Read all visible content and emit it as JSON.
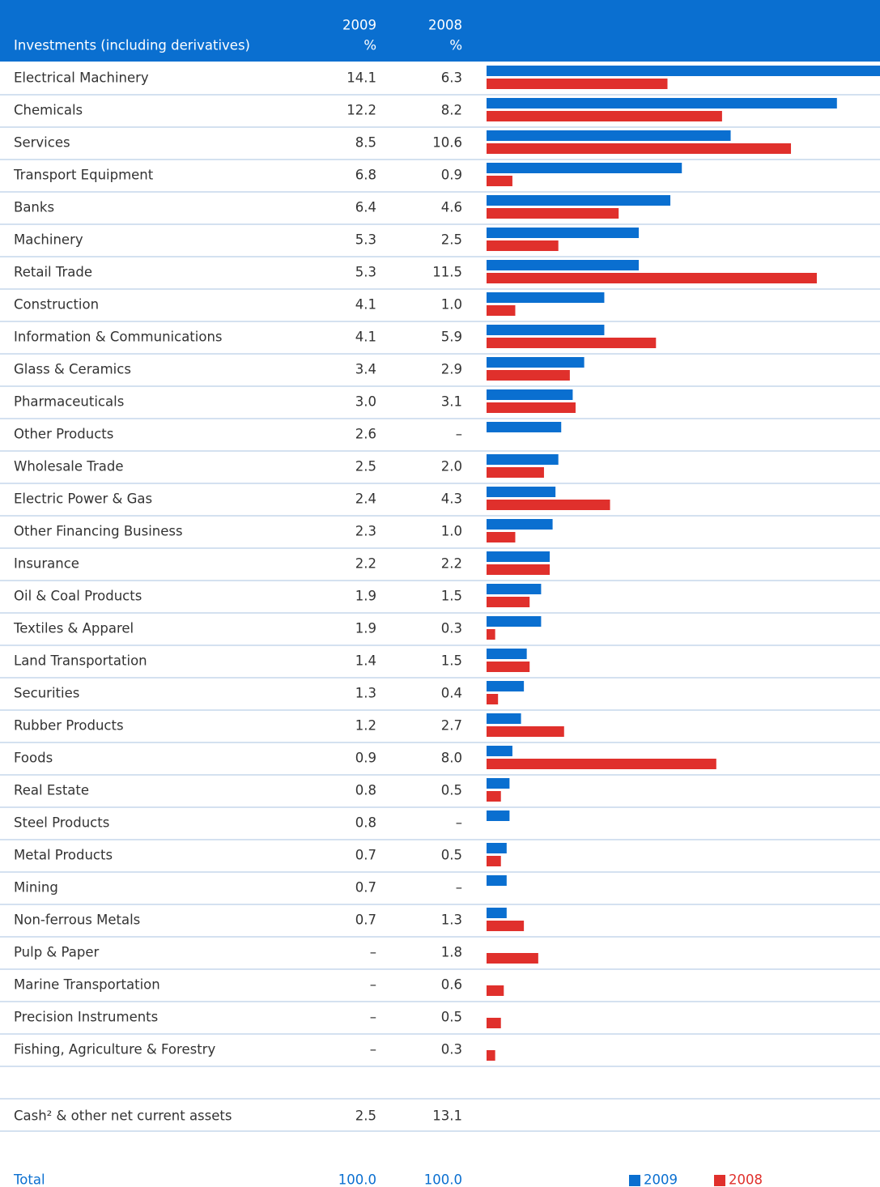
{
  "table": {
    "title": "Investments (including derivatives)",
    "columns": [
      {
        "year": "2009",
        "unit": "%"
      },
      {
        "year": "2008",
        "unit": "%"
      }
    ],
    "rows": [
      {
        "label": "Electrical Machinery",
        "cells": [
          "14.1",
          "6.3"
        ]
      },
      {
        "label": "Chemicals",
        "cells": [
          "12.2",
          "8.2"
        ]
      },
      {
        "label": "Services",
        "cells": [
          "8.5",
          "10.6"
        ]
      },
      {
        "label": "Transport Equipment",
        "cells": [
          "6.8",
          "0.9"
        ]
      },
      {
        "label": "Banks",
        "cells": [
          "6.4",
          "4.6"
        ]
      },
      {
        "label": "Machinery",
        "cells": [
          "5.3",
          "2.5"
        ]
      },
      {
        "label": "Retail Trade",
        "cells": [
          "5.3",
          "11.5"
        ]
      },
      {
        "label": "Construction",
        "cells": [
          "4.1",
          "1.0"
        ]
      },
      {
        "label": "Information & Communications",
        "cells": [
          "4.1",
          "5.9"
        ]
      },
      {
        "label": "Glass & Ceramics",
        "cells": [
          "3.4",
          "2.9"
        ]
      },
      {
        "label": "Pharmaceuticals",
        "cells": [
          "3.0",
          "3.1"
        ]
      },
      {
        "label": "Other Products",
        "cells": [
          "2.6",
          "–"
        ]
      },
      {
        "label": "Wholesale Trade",
        "cells": [
          "2.5",
          "2.0"
        ]
      },
      {
        "label": "Electric Power & Gas",
        "cells": [
          "2.4",
          "4.3"
        ]
      },
      {
        "label": "Other Financing Business",
        "cells": [
          "2.3",
          "1.0"
        ]
      },
      {
        "label": "Insurance",
        "cells": [
          "2.2",
          "2.2"
        ]
      },
      {
        "label": "Oil & Coal Products",
        "cells": [
          "1.9",
          "1.5"
        ]
      },
      {
        "label": "Textiles & Apparel",
        "cells": [
          "1.9",
          "0.3"
        ]
      },
      {
        "label": "Land Transportation",
        "cells": [
          "1.4",
          "1.5"
        ]
      },
      {
        "label": "Securities",
        "cells": [
          "1.3",
          "0.4"
        ]
      },
      {
        "label": "Rubber Products",
        "cells": [
          "1.2",
          "2.7"
        ]
      },
      {
        "label": "Foods",
        "cells": [
          "0.9",
          "8.0"
        ]
      },
      {
        "label": "Real Estate",
        "cells": [
          "0.8",
          "0.5"
        ]
      },
      {
        "label": "Steel Products",
        "cells": [
          "0.8",
          "–"
        ]
      },
      {
        "label": "Metal Products",
        "cells": [
          "0.7",
          "0.5"
        ]
      },
      {
        "label": "Mining",
        "cells": [
          "0.7",
          "–"
        ]
      },
      {
        "label": "Non-ferrous Metals",
        "cells": [
          "0.7",
          "1.3"
        ]
      },
      {
        "label": "Pulp & Paper",
        "cells": [
          "–",
          "1.8"
        ]
      },
      {
        "label": "Marine Transportation",
        "cells": [
          "–",
          "0.6"
        ]
      },
      {
        "label": "Precision Instruments",
        "cells": [
          "–",
          "0.5"
        ]
      },
      {
        "label": "Fishing, Agriculture & Forestry",
        "cells": [
          "–",
          "0.3"
        ]
      }
    ],
    "cash": {
      "label": "Cash² & other net current assets",
      "cells": [
        "2.5",
        "13.1"
      ]
    },
    "total": {
      "label": "Total",
      "cells": [
        "100.0",
        "100.0"
      ]
    }
  },
  "chart_data": {
    "type": "bar",
    "xlim": [
      0,
      13.7
    ],
    "series": [
      {
        "name": "2009",
        "color": "#0a6fd0",
        "values": [
          14.1,
          12.2,
          8.5,
          6.8,
          6.4,
          5.3,
          5.3,
          4.1,
          4.1,
          3.4,
          3.0,
          2.6,
          2.5,
          2.4,
          2.3,
          2.2,
          1.9,
          1.9,
          1.4,
          1.3,
          1.2,
          0.9,
          0.8,
          0.8,
          0.7,
          0.7,
          0.7,
          null,
          null,
          null,
          null
        ]
      },
      {
        "name": "2008",
        "color": "#e0302c",
        "values": [
          6.3,
          8.2,
          10.6,
          0.9,
          4.6,
          2.5,
          11.5,
          1.0,
          5.9,
          2.9,
          3.1,
          null,
          2.0,
          4.3,
          1.0,
          2.2,
          1.5,
          0.3,
          1.5,
          0.4,
          2.7,
          8.0,
          0.5,
          null,
          0.5,
          null,
          1.3,
          1.8,
          0.6,
          0.5,
          0.3
        ]
      }
    ]
  }
}
